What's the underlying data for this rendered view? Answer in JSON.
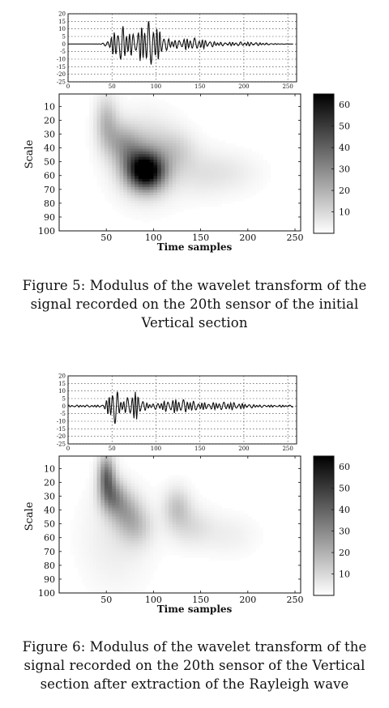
{
  "figures": [
    {
      "caption_lines": [
        "Figure 5: Modulus of the wavelet transform of the",
        "signal recorded on the 20th sensor of the initial",
        "Vertical section"
      ],
      "chart_data": [
        {
          "type": "line",
          "xlim": [
            0,
            260
          ],
          "ylim": [
            -25,
            20
          ],
          "x_ticks": [
            "0",
            "50",
            "100",
            "150",
            "200",
            "250"
          ],
          "y_ticks": [
            "20",
            "15",
            "10",
            "5",
            "0",
            "-5",
            "-10",
            "-15",
            "-20",
            "-25"
          ],
          "grid": true
        },
        {
          "type": "heatmap",
          "xlabel": "Time samples",
          "ylabel": "Scale",
          "xlim": [
            0,
            256
          ],
          "ylim": [
            100,
            1
          ],
          "x_ticks": [
            "50",
            "100",
            "150",
            "200",
            "250"
          ],
          "y_ticks": [
            "10",
            "20",
            "30",
            "40",
            "50",
            "60",
            "70",
            "80",
            "90",
            "100"
          ],
          "colorbar_ticks": [
            "10",
            "20",
            "30",
            "40",
            "50",
            "60"
          ],
          "colorbar_range": [
            0,
            65
          ],
          "blobs": [
            {
              "x": 92,
              "y": 57,
              "sx": 13,
              "sy": 9,
              "v": 64
            },
            {
              "x": 92,
              "y": 48,
              "sx": 22,
              "sy": 18,
              "v": 18
            },
            {
              "x": 50,
              "y": 20,
              "sx": 8,
              "sy": 12,
              "v": 16
            },
            {
              "x": 62,
              "y": 35,
              "sx": 12,
              "sy": 10,
              "v": 14
            },
            {
              "x": 75,
              "y": 45,
              "sx": 10,
              "sy": 10,
              "v": 12
            },
            {
              "x": 125,
              "y": 42,
              "sx": 14,
              "sy": 10,
              "v": 8
            },
            {
              "x": 150,
              "y": 58,
              "sx": 22,
              "sy": 12,
              "v": 6
            },
            {
              "x": 185,
              "y": 58,
              "sx": 22,
              "sy": 10,
              "v": 4
            }
          ]
        }
      ]
    },
    {
      "caption_lines": [
        "Figure 6: Modulus of the wavelet transform of the",
        "signal recorded on the 20th sensor of the Vertical",
        "section after extraction of the Rayleigh wave"
      ],
      "chart_data": [
        {
          "type": "line",
          "xlim": [
            0,
            260
          ],
          "ylim": [
            -25,
            20
          ],
          "x_ticks": [
            "0",
            "50",
            "100",
            "150",
            "200",
            "250"
          ],
          "y_ticks": [
            "20",
            "15",
            "10",
            "5",
            "0",
            "-5",
            "-10",
            "-15",
            "-20",
            "-25"
          ],
          "grid": true
        },
        {
          "type": "heatmap",
          "xlabel": "Time samples",
          "ylabel": "Scale",
          "xlim": [
            0,
            256
          ],
          "ylim": [
            100,
            1
          ],
          "x_ticks": [
            "50",
            "100",
            "150",
            "200",
            "250"
          ],
          "y_ticks": [
            "10",
            "20",
            "30",
            "40",
            "50",
            "60",
            "70",
            "80",
            "90",
            "100"
          ],
          "colorbar_ticks": [
            "10",
            "20",
            "30",
            "40",
            "50",
            "60"
          ],
          "colorbar_range": [
            0,
            65
          ],
          "blobs": [
            {
              "x": 50,
              "y": 15,
              "sx": 6,
              "sy": 10,
              "v": 34
            },
            {
              "x": 56,
              "y": 30,
              "sx": 9,
              "sy": 9,
              "v": 26
            },
            {
              "x": 70,
              "y": 40,
              "sx": 11,
              "sy": 10,
              "v": 16
            },
            {
              "x": 82,
              "y": 52,
              "sx": 12,
              "sy": 10,
              "v": 12
            },
            {
              "x": 125,
              "y": 38,
              "sx": 10,
              "sy": 10,
              "v": 14
            },
            {
              "x": 140,
              "y": 52,
              "sx": 16,
              "sy": 10,
              "v": 8
            },
            {
              "x": 180,
              "y": 58,
              "sx": 20,
              "sy": 10,
              "v": 4
            },
            {
              "x": 60,
              "y": 60,
              "sx": 25,
              "sy": 25,
              "v": 5
            }
          ]
        }
      ]
    }
  ]
}
